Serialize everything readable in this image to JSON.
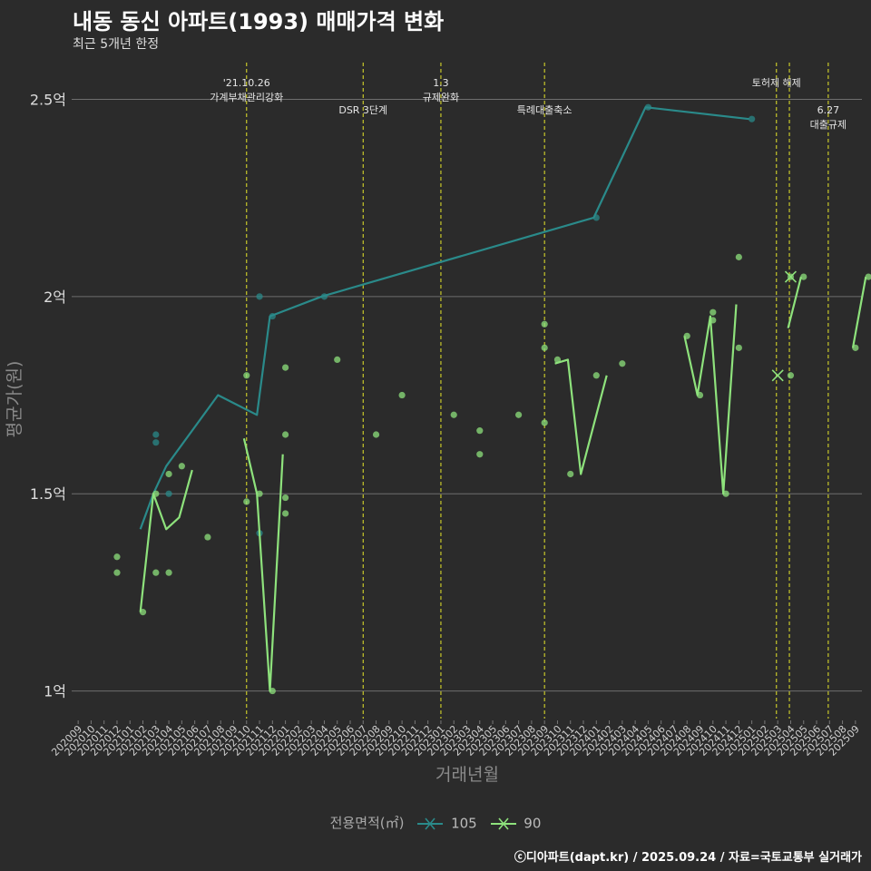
{
  "chart_data": {
    "type": "line",
    "title": "내동 동신 아파트(1993) 매매가격 변화",
    "subtitle": "최근 5개년 한정",
    "xlabel": "거래년월",
    "ylabel": "평균가(원)",
    "ylim": [
      0.93,
      2.6
    ],
    "yticks": [
      1,
      1.5,
      2,
      2.5
    ],
    "ytick_labels": [
      "1억",
      "1.5억",
      "2억",
      "2.5억"
    ],
    "x_months": [
      "202009",
      "202010",
      "202011",
      "202012",
      "202101",
      "202102",
      "202103",
      "202104",
      "202105",
      "202106",
      "202107",
      "202108",
      "202109",
      "202110",
      "202111",
      "202112",
      "202201",
      "202202",
      "202203",
      "202204",
      "202205",
      "202206",
      "202207",
      "202208",
      "202209",
      "202210",
      "202211",
      "202212",
      "202301",
      "202302",
      "202303",
      "202304",
      "202305",
      "202306",
      "202307",
      "202308",
      "202309",
      "202310",
      "202311",
      "202312",
      "202401",
      "202402",
      "202403",
      "202404",
      "202405",
      "202406",
      "202407",
      "202408",
      "202409",
      "202410",
      "202411",
      "202412",
      "202501",
      "202502",
      "202503",
      "202504",
      "202505",
      "202506",
      "202507",
      "202508",
      "202509"
    ],
    "events": [
      {
        "month": 13.0,
        "lines": [
          "'21.10.26",
          "가계부채관리강화"
        ],
        "pos": "high"
      },
      {
        "month": 22.0,
        "lines": [
          "DSR 3단계"
        ],
        "pos": "low"
      },
      {
        "month": 28.0,
        "lines": [
          "1.3",
          "규제완화"
        ],
        "pos": "high"
      },
      {
        "month": 36.0,
        "lines": [
          "특례대출축소"
        ],
        "pos": "low"
      },
      {
        "month": 53.9,
        "lines": [
          "토허제 해제"
        ],
        "pos": "high"
      },
      {
        "month": 54.9,
        "lines": [],
        "pos": "none"
      },
      {
        "month": 57.9,
        "lines": [
          "6.27",
          "대출규제"
        ],
        "pos": "low"
      }
    ],
    "series": [
      {
        "name": "105",
        "color": "#2a8a8a",
        "line": [
          [
            4.8,
            1.41
          ],
          [
            5.8,
            1.5
          ],
          [
            6.8,
            1.57
          ],
          [
            10.8,
            1.75
          ],
          [
            13.8,
            1.7
          ],
          [
            14.8,
            1.95
          ],
          [
            18.8,
            2.0
          ],
          [
            39.8,
            2.2
          ],
          [
            43.8,
            2.48
          ],
          [
            51.8,
            2.45
          ]
        ],
        "points": [
          [
            6.0,
            1.65
          ],
          [
            6.0,
            1.63
          ],
          [
            7.0,
            1.5
          ],
          [
            14.0,
            2.0
          ],
          [
            14.0,
            1.4
          ],
          [
            15.0,
            1.95
          ],
          [
            19.0,
            2.0
          ],
          [
            40.0,
            2.2
          ],
          [
            44.0,
            2.48
          ],
          [
            52.0,
            2.45
          ]
        ],
        "cross": []
      },
      {
        "name": "90",
        "color": "#8ee27c",
        "line_segments": [
          [
            [
              4.8,
              1.2
            ],
            [
              5.8,
              1.5
            ],
            [
              6.8,
              1.41
            ],
            [
              7.8,
              1.44
            ],
            [
              8.8,
              1.56
            ]
          ],
          [
            [
              12.8,
              1.64
            ],
            [
              13.8,
              1.5
            ],
            [
              14.8,
              1.0
            ],
            [
              15.8,
              1.6
            ]
          ],
          [
            [
              36.8,
              1.83
            ],
            [
              37.8,
              1.84
            ],
            [
              38.8,
              1.55
            ],
            [
              40.8,
              1.8
            ]
          ],
          [
            [
              46.8,
              1.9
            ],
            [
              47.8,
              1.75
            ],
            [
              48.8,
              1.95
            ],
            [
              49.8,
              1.5
            ],
            [
              50.8,
              1.98
            ]
          ],
          [
            [
              54.8,
              1.92
            ],
            [
              55.8,
              2.05
            ]
          ],
          [
            [
              59.8,
              1.87
            ],
            [
              60.8,
              2.05
            ]
          ]
        ],
        "points": [
          [
            3.0,
            1.34
          ],
          [
            3.0,
            1.3
          ],
          [
            5.0,
            1.2
          ],
          [
            6.0,
            1.5
          ],
          [
            6.0,
            1.3
          ],
          [
            7.0,
            1.55
          ],
          [
            7.0,
            1.3
          ],
          [
            8.0,
            1.57
          ],
          [
            10.0,
            1.39
          ],
          [
            13.0,
            1.8
          ],
          [
            13.0,
            1.48
          ],
          [
            14.0,
            1.5
          ],
          [
            15.0,
            1.0
          ],
          [
            16.0,
            1.82
          ],
          [
            16.0,
            1.65
          ],
          [
            16.0,
            1.49
          ],
          [
            16.0,
            1.45
          ],
          [
            20.0,
            1.84
          ],
          [
            23.0,
            1.65
          ],
          [
            25.0,
            1.75
          ],
          [
            29.0,
            1.7
          ],
          [
            31.0,
            1.66
          ],
          [
            31.0,
            1.6
          ],
          [
            34.0,
            1.7
          ],
          [
            36.0,
            1.93
          ],
          [
            36.0,
            1.87
          ],
          [
            36.0,
            1.68
          ],
          [
            37.0,
            1.84
          ],
          [
            38.0,
            1.55
          ],
          [
            40.0,
            1.8
          ],
          [
            42.0,
            1.83
          ],
          [
            47.0,
            1.9
          ],
          [
            48.0,
            1.75
          ],
          [
            49.0,
            1.96
          ],
          [
            49.0,
            1.94
          ],
          [
            50.0,
            1.5
          ],
          [
            51.0,
            2.1
          ],
          [
            51.0,
            1.87
          ],
          [
            55.0,
            2.05
          ],
          [
            55.0,
            1.8
          ],
          [
            56.0,
            2.05
          ],
          [
            60.0,
            1.87
          ],
          [
            61.0,
            2.05
          ]
        ],
        "cross": [
          [
            54.0,
            1.8
          ],
          [
            55.0,
            2.05
          ]
        ]
      }
    ]
  },
  "legend": {
    "title": "전용면적(㎡)",
    "items": [
      {
        "label": "105",
        "color": "#2a8a8a"
      },
      {
        "label": "90",
        "color": "#8ee27c"
      }
    ]
  },
  "caption": "ⓒ디아파트(dapt.kr) / 2025.09.24 / 자료=국토교통부 실거래가"
}
